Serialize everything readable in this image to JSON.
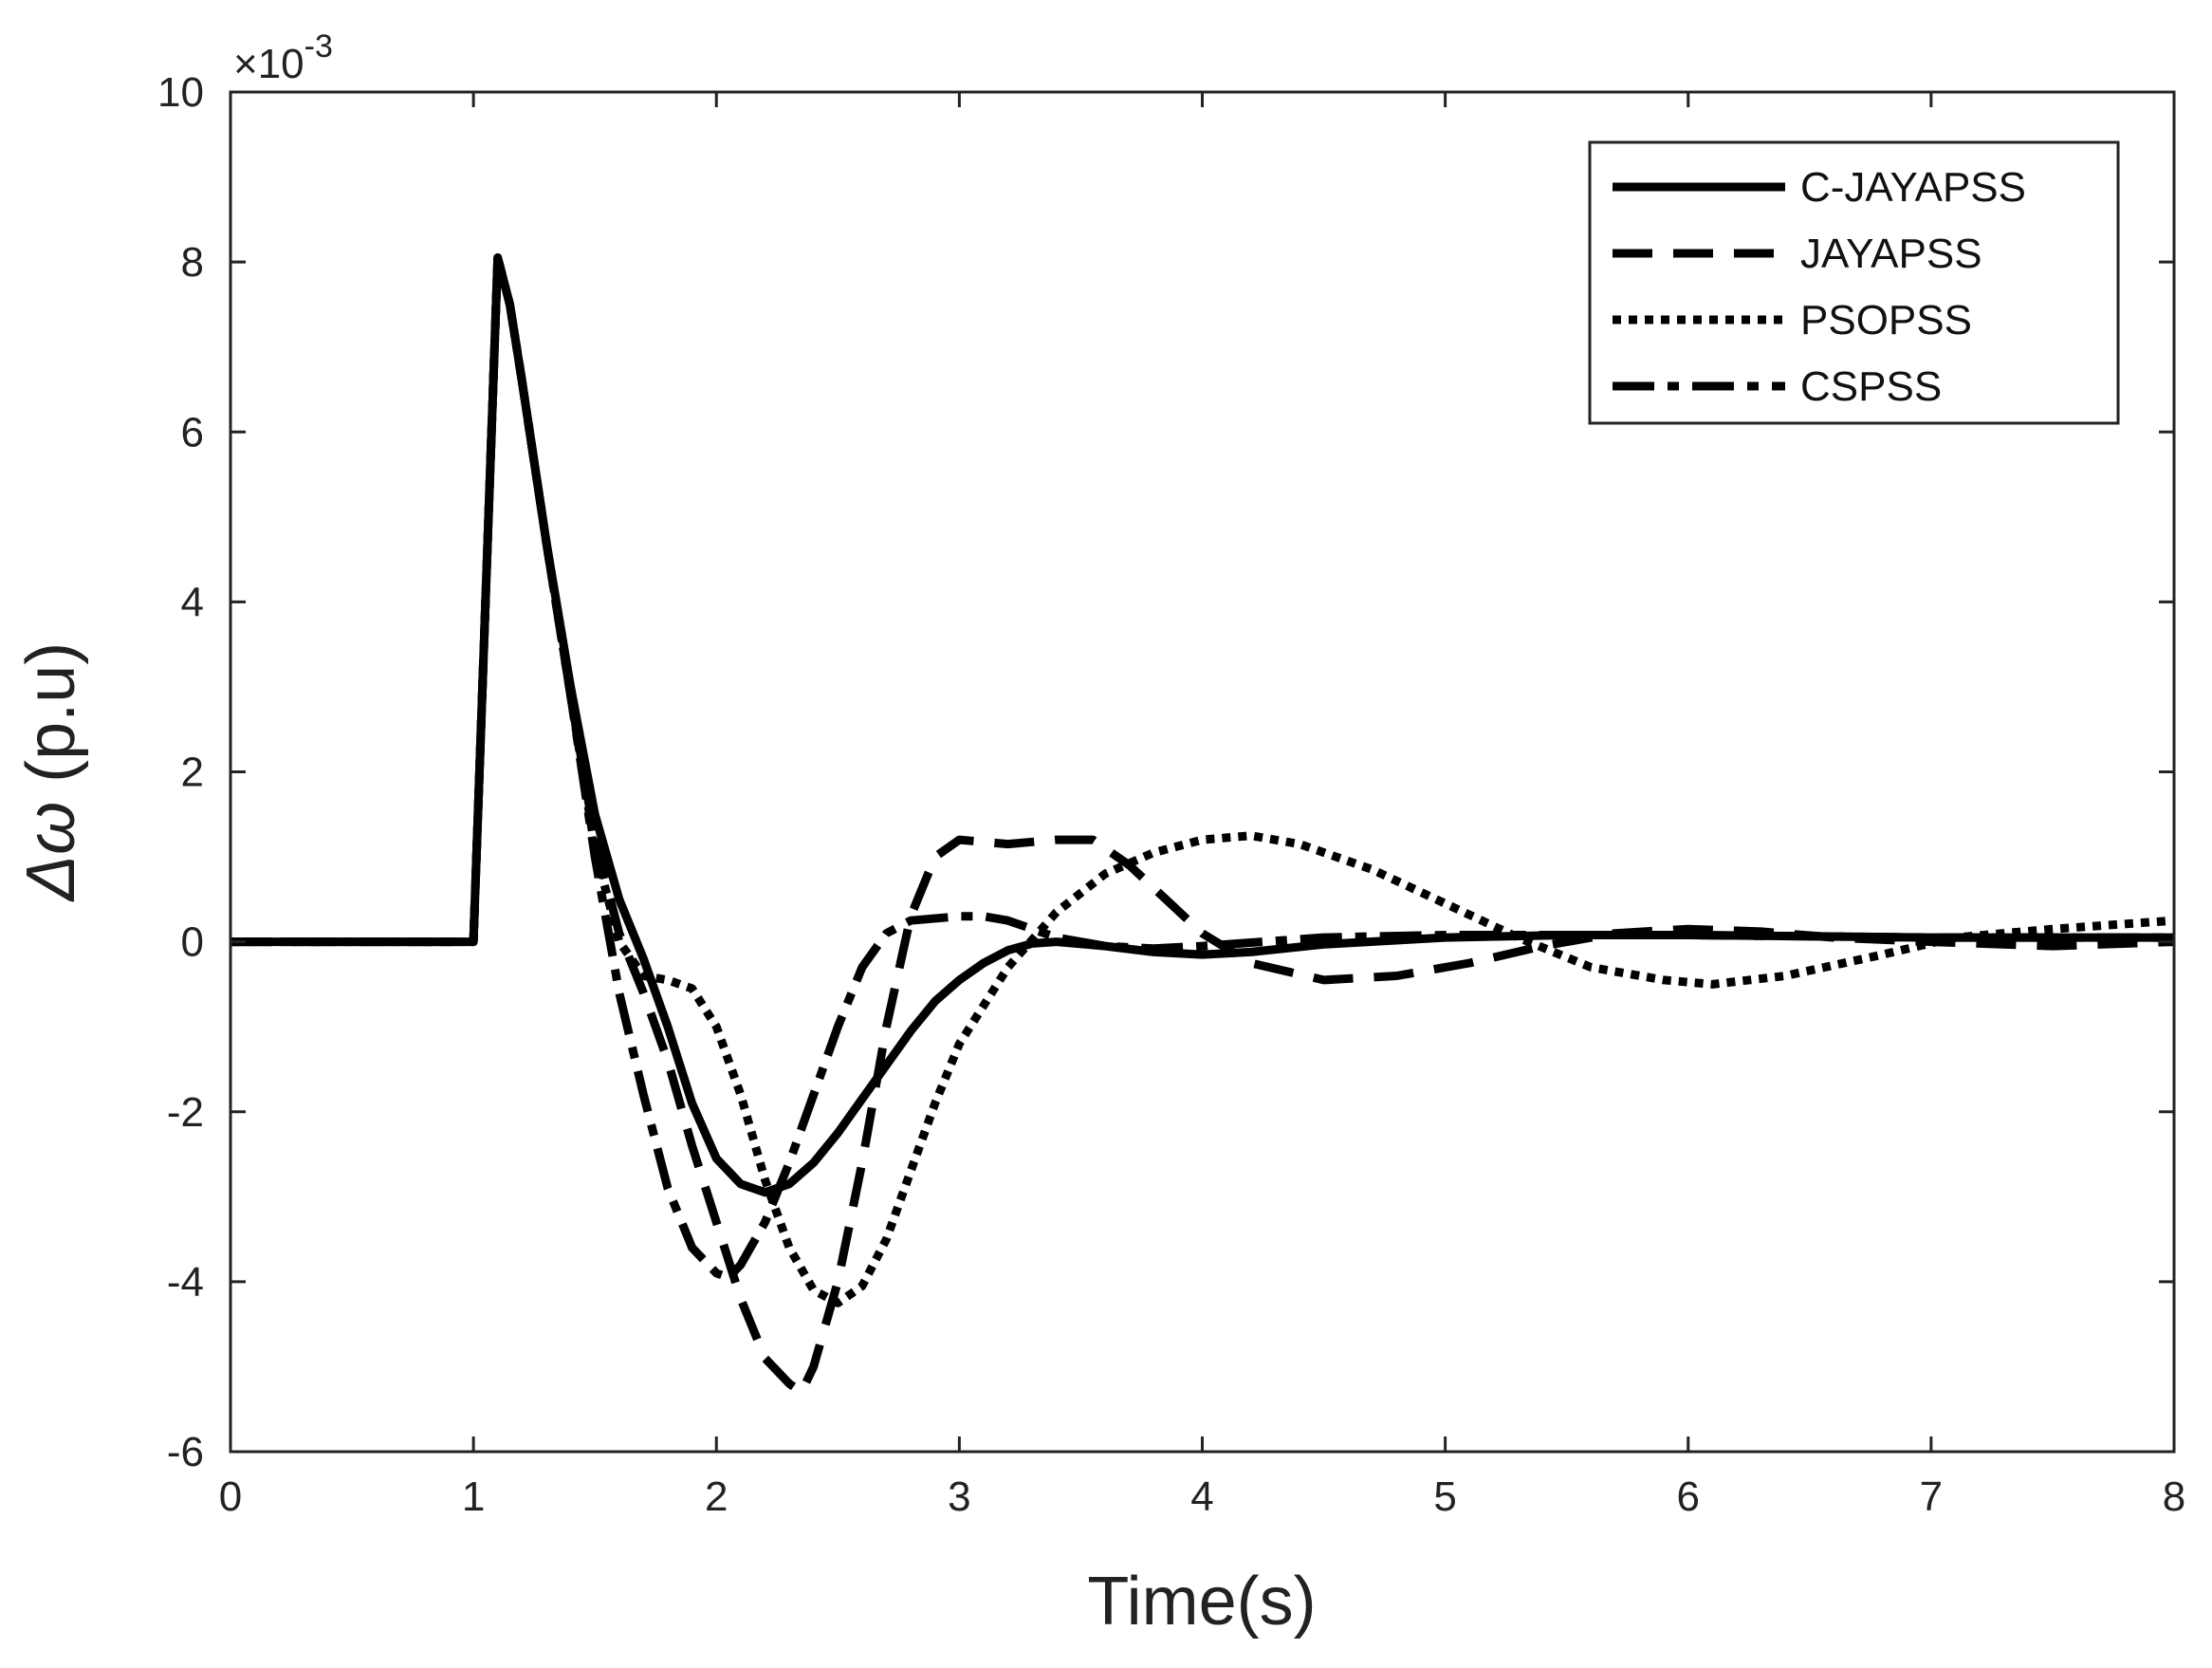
{
  "chart_data": {
    "type": "line",
    "title": "",
    "xlabel": "Time(s)",
    "ylabel_prefix": "Δω",
    "ylabel_suffix": " (p.u)",
    "y_exponent_prefix": "×10",
    "y_exponent_power": "-3",
    "xlim": [
      0,
      8
    ],
    "ylim": [
      -6,
      10
    ],
    "xticks": [
      0,
      1,
      2,
      3,
      4,
      5,
      6,
      7,
      8
    ],
    "yticks": [
      -6,
      -4,
      -2,
      0,
      2,
      4,
      6,
      8,
      10
    ],
    "xtick_labels": [
      "0",
      "1",
      "2",
      "3",
      "4",
      "5",
      "6",
      "7",
      "8"
    ],
    "ytick_labels": [
      "-6",
      "-4",
      "-2",
      "0",
      "2",
      "4",
      "6",
      "8",
      "10"
    ],
    "grid": false,
    "legend_position": "top-right",
    "series": [
      {
        "name": "C-JAYAPSS",
        "style": "solid",
        "color": "#000000",
        "points": [
          [
            0,
            0
          ],
          [
            1,
            0
          ],
          [
            1.1,
            8.05
          ],
          [
            1.15,
            7.5
          ],
          [
            1.2,
            6.6
          ],
          [
            1.3,
            4.7
          ],
          [
            1.4,
            3.0
          ],
          [
            1.5,
            1.5
          ],
          [
            1.6,
            0.5
          ],
          [
            1.7,
            -0.2
          ],
          [
            1.8,
            -1.0
          ],
          [
            1.9,
            -1.9
          ],
          [
            2.0,
            -2.55
          ],
          [
            2.1,
            -2.85
          ],
          [
            2.2,
            -2.95
          ],
          [
            2.3,
            -2.85
          ],
          [
            2.4,
            -2.6
          ],
          [
            2.5,
            -2.25
          ],
          [
            2.6,
            -1.85
          ],
          [
            2.7,
            -1.45
          ],
          [
            2.8,
            -1.05
          ],
          [
            2.9,
            -0.7
          ],
          [
            3.0,
            -0.45
          ],
          [
            3.1,
            -0.25
          ],
          [
            3.2,
            -0.1
          ],
          [
            3.3,
            -0.02
          ],
          [
            3.4,
            0.0
          ],
          [
            3.6,
            -0.05
          ],
          [
            3.8,
            -0.12
          ],
          [
            4.0,
            -0.15
          ],
          [
            4.2,
            -0.12
          ],
          [
            4.5,
            -0.03
          ],
          [
            5.0,
            0.05
          ],
          [
            5.5,
            0.08
          ],
          [
            6.0,
            0.08
          ],
          [
            7.0,
            0.05
          ],
          [
            8.0,
            0.05
          ]
        ]
      },
      {
        "name": "JAYAPSS",
        "style": "dashed",
        "color": "#000000",
        "points": [
          [
            0,
            0
          ],
          [
            1,
            0
          ],
          [
            1.1,
            8.05
          ],
          [
            1.15,
            7.5
          ],
          [
            1.2,
            6.6
          ],
          [
            1.3,
            4.7
          ],
          [
            1.4,
            2.9
          ],
          [
            1.5,
            1.2
          ],
          [
            1.6,
            0.1
          ],
          [
            1.7,
            -0.6
          ],
          [
            1.8,
            -1.4
          ],
          [
            1.9,
            -2.4
          ],
          [
            2.0,
            -3.3
          ],
          [
            2.1,
            -4.2
          ],
          [
            2.2,
            -4.9
          ],
          [
            2.3,
            -5.2
          ],
          [
            2.35,
            -5.3
          ],
          [
            2.4,
            -5.0
          ],
          [
            2.5,
            -4.0
          ],
          [
            2.6,
            -2.6
          ],
          [
            2.7,
            -1.0
          ],
          [
            2.8,
            0.3
          ],
          [
            2.9,
            1.0
          ],
          [
            3.0,
            1.2
          ],
          [
            3.2,
            1.15
          ],
          [
            3.4,
            1.2
          ],
          [
            3.55,
            1.2
          ],
          [
            3.7,
            0.9
          ],
          [
            3.85,
            0.5
          ],
          [
            4.0,
            0.1
          ],
          [
            4.2,
            -0.25
          ],
          [
            4.5,
            -0.45
          ],
          [
            4.8,
            -0.4
          ],
          [
            5.1,
            -0.25
          ],
          [
            5.4,
            -0.05
          ],
          [
            5.7,
            0.1
          ],
          [
            6.0,
            0.15
          ],
          [
            6.3,
            0.12
          ],
          [
            6.6,
            0.05
          ],
          [
            7.0,
            0.0
          ],
          [
            7.5,
            -0.05
          ],
          [
            8.0,
            0.0
          ]
        ]
      },
      {
        "name": "PSOPSS",
        "style": "dotted",
        "color": "#000000",
        "points": [
          [
            0,
            0
          ],
          [
            1,
            0
          ],
          [
            1.1,
            8.05
          ],
          [
            1.15,
            7.5
          ],
          [
            1.2,
            6.6
          ],
          [
            1.3,
            4.7
          ],
          [
            1.4,
            2.9
          ],
          [
            1.5,
            1.1
          ],
          [
            1.6,
            0.0
          ],
          [
            1.7,
            -0.4
          ],
          [
            1.8,
            -0.45
          ],
          [
            1.9,
            -0.55
          ],
          [
            2.0,
            -1.0
          ],
          [
            2.1,
            -1.8
          ],
          [
            2.2,
            -2.8
          ],
          [
            2.3,
            -3.6
          ],
          [
            2.4,
            -4.1
          ],
          [
            2.5,
            -4.25
          ],
          [
            2.6,
            -4.05
          ],
          [
            2.7,
            -3.5
          ],
          [
            2.8,
            -2.7
          ],
          [
            2.9,
            -1.9
          ],
          [
            3.0,
            -1.2
          ],
          [
            3.2,
            -0.3
          ],
          [
            3.4,
            0.35
          ],
          [
            3.6,
            0.8
          ],
          [
            3.8,
            1.05
          ],
          [
            4.0,
            1.2
          ],
          [
            4.2,
            1.25
          ],
          [
            4.4,
            1.15
          ],
          [
            4.7,
            0.85
          ],
          [
            5.0,
            0.45
          ],
          [
            5.3,
            0.05
          ],
          [
            5.6,
            -0.3
          ],
          [
            5.9,
            -0.45
          ],
          [
            6.1,
            -0.5
          ],
          [
            6.4,
            -0.4
          ],
          [
            6.8,
            -0.15
          ],
          [
            7.1,
            0.05
          ],
          [
            7.5,
            0.15
          ],
          [
            8.0,
            0.25
          ]
        ]
      },
      {
        "name": "CSPSS",
        "style": "dashdot",
        "color": "#000000",
        "points": [
          [
            0,
            0
          ],
          [
            1,
            0
          ],
          [
            1.1,
            8.05
          ],
          [
            1.15,
            7.5
          ],
          [
            1.2,
            6.6
          ],
          [
            1.3,
            4.7
          ],
          [
            1.4,
            2.9
          ],
          [
            1.5,
            1.0
          ],
          [
            1.6,
            -0.6
          ],
          [
            1.7,
            -1.8
          ],
          [
            1.8,
            -2.9
          ],
          [
            1.9,
            -3.6
          ],
          [
            2.0,
            -3.9
          ],
          [
            2.05,
            -3.95
          ],
          [
            2.1,
            -3.8
          ],
          [
            2.2,
            -3.3
          ],
          [
            2.3,
            -2.6
          ],
          [
            2.4,
            -1.8
          ],
          [
            2.5,
            -1.0
          ],
          [
            2.6,
            -0.3
          ],
          [
            2.7,
            0.1
          ],
          [
            2.8,
            0.25
          ],
          [
            3.0,
            0.3
          ],
          [
            3.1,
            0.3
          ],
          [
            3.2,
            0.25
          ],
          [
            3.4,
            0.05
          ],
          [
            3.6,
            -0.05
          ],
          [
            3.8,
            -0.08
          ],
          [
            4.0,
            -0.05
          ],
          [
            4.5,
            0.05
          ],
          [
            5.0,
            0.08
          ],
          [
            6.0,
            0.08
          ],
          [
            7.0,
            0.05
          ],
          [
            8.0,
            0.05
          ]
        ]
      }
    ]
  }
}
